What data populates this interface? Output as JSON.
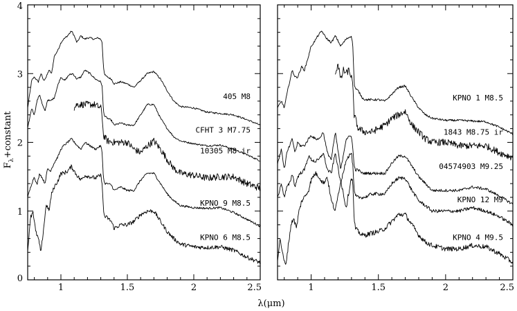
{
  "figure": {
    "ylabel_main": "F",
    "ylabel_sub": "λ",
    "ylabel_rest": "+constant",
    "xlabel": "λ(μm)"
  },
  "chart_data": [
    {
      "type": "line",
      "panel": "left",
      "xlim": [
        0.75,
        2.5
      ],
      "ylim": [
        0,
        4
      ],
      "xticks": [
        1,
        1.5,
        2,
        2.5
      ],
      "xtick_labels": [
        "1",
        "1.5",
        "2",
        "2.5"
      ],
      "yticks": [
        0,
        1,
        2,
        3,
        4
      ],
      "ytick_labels": [
        "0",
        "1",
        "2",
        "3",
        "4"
      ],
      "grid": false,
      "series": [
        {
          "label": "405 M8",
          "label_y": 2.67,
          "noise": 0.012,
          "x": [
            0.75,
            0.78,
            0.8,
            0.83,
            0.85,
            0.87,
            0.89,
            0.91,
            0.93,
            0.95,
            0.98,
            1.0,
            1.02,
            1.05,
            1.08,
            1.1,
            1.12,
            1.15,
            1.18,
            1.2,
            1.22,
            1.25,
            1.28,
            1.3,
            1.31,
            1.32,
            1.33,
            1.35,
            1.38,
            1.4,
            1.45,
            1.5,
            1.55,
            1.6,
            1.65,
            1.7,
            1.75,
            1.8,
            1.85,
            1.9,
            2.0,
            2.1,
            2.2,
            2.3,
            2.4,
            2.5
          ],
          "y": [
            2.5,
            2.9,
            2.95,
            2.88,
            3.0,
            2.9,
            2.95,
            3.05,
            3.0,
            3.25,
            3.35,
            3.45,
            3.5,
            3.55,
            3.62,
            3.55,
            3.45,
            3.55,
            3.5,
            3.52,
            3.52,
            3.5,
            3.52,
            3.5,
            3.45,
            3.1,
            2.98,
            2.95,
            2.92,
            2.85,
            2.88,
            2.85,
            2.8,
            2.9,
            3.0,
            3.03,
            2.92,
            2.75,
            2.6,
            2.52,
            2.5,
            2.44,
            2.42,
            2.4,
            2.33,
            2.25
          ]
        },
        {
          "label": "CFHT 3 M7.75",
          "label_y": 2.18,
          "noise": 0.012,
          "x": [
            0.75,
            0.78,
            0.8,
            0.82,
            0.84,
            0.86,
            0.88,
            0.9,
            0.92,
            0.95,
            0.98,
            1.0,
            1.03,
            1.06,
            1.09,
            1.12,
            1.15,
            1.18,
            1.22,
            1.26,
            1.3,
            1.31,
            1.32,
            1.33,
            1.35,
            1.38,
            1.4,
            1.45,
            1.5,
            1.55,
            1.6,
            1.65,
            1.7,
            1.75,
            1.8,
            1.85,
            1.9,
            2.0,
            2.1,
            2.2,
            2.3,
            2.4,
            2.5
          ],
          "y": [
            2.2,
            2.5,
            2.4,
            2.6,
            2.7,
            2.55,
            2.45,
            2.62,
            2.6,
            2.65,
            2.85,
            2.95,
            2.9,
            2.98,
            3.0,
            2.92,
            2.95,
            3.05,
            3.0,
            2.92,
            2.88,
            2.82,
            2.45,
            2.38,
            2.35,
            2.32,
            2.25,
            2.28,
            2.25,
            2.25,
            2.4,
            2.55,
            2.55,
            2.35,
            2.2,
            2.08,
            2.02,
            1.98,
            1.95,
            1.96,
            1.9,
            1.82,
            1.73
          ]
        },
        {
          "label": "10305 M8 ir",
          "label_y": 1.88,
          "noise": 0.05,
          "x": [
            1.1,
            1.12,
            1.15,
            1.2,
            1.25,
            1.3,
            1.31,
            1.32,
            1.35,
            1.4,
            1.45,
            1.5,
            1.55,
            1.6,
            1.65,
            1.7,
            1.75,
            1.8,
            1.85,
            1.9,
            2.0,
            2.1,
            2.2,
            2.3,
            2.4,
            2.5
          ],
          "y": [
            2.5,
            2.55,
            2.55,
            2.55,
            2.55,
            2.5,
            2.4,
            2.1,
            2.02,
            2.0,
            2.0,
            2.0,
            1.9,
            1.85,
            1.95,
            2.02,
            1.9,
            1.75,
            1.62,
            1.55,
            1.52,
            1.48,
            1.5,
            1.5,
            1.4,
            1.33
          ]
        },
        {
          "label": "KPNO 9 M8.5",
          "label_y": 1.12,
          "noise": 0.015,
          "x": [
            0.75,
            0.78,
            0.8,
            0.82,
            0.84,
            0.86,
            0.88,
            0.9,
            0.92,
            0.95,
            0.98,
            1.0,
            1.02,
            1.05,
            1.08,
            1.11,
            1.15,
            1.18,
            1.22,
            1.26,
            1.3,
            1.31,
            1.32,
            1.33,
            1.35,
            1.38,
            1.4,
            1.45,
            1.5,
            1.55,
            1.6,
            1.65,
            1.7,
            1.75,
            1.8,
            1.85,
            1.9,
            2.0,
            2.1,
            2.2,
            2.3,
            2.4,
            2.5
          ],
          "y": [
            1.2,
            1.4,
            1.5,
            1.38,
            1.55,
            1.48,
            1.4,
            1.62,
            1.58,
            1.7,
            1.8,
            1.9,
            1.95,
            2.0,
            2.05,
            1.98,
            1.9,
            2.0,
            1.95,
            1.9,
            1.95,
            1.85,
            1.48,
            1.4,
            1.4,
            1.38,
            1.3,
            1.35,
            1.3,
            1.3,
            1.45,
            1.55,
            1.55,
            1.4,
            1.25,
            1.15,
            1.08,
            1.05,
            1.04,
            1.05,
            0.98,
            0.88,
            0.78
          ]
        },
        {
          "label": "KPNO 6 M8.5",
          "label_y": 0.62,
          "noise": 0.03,
          "x": [
            0.75,
            0.77,
            0.79,
            0.81,
            0.83,
            0.85,
            0.87,
            0.89,
            0.91,
            0.93,
            0.95,
            0.98,
            1.0,
            1.02,
            1.05,
            1.08,
            1.11,
            1.15,
            1.18,
            1.22,
            1.26,
            1.3,
            1.31,
            1.32,
            1.33,
            1.35,
            1.38,
            1.4,
            1.45,
            1.5,
            1.55,
            1.6,
            1.65,
            1.7,
            1.75,
            1.8,
            1.85,
            1.9,
            2.0,
            2.1,
            2.2,
            2.3,
            2.4,
            2.5
          ],
          "y": [
            0.4,
            0.9,
            1.0,
            0.7,
            0.6,
            0.4,
            0.75,
            1.1,
            1.0,
            1.25,
            1.35,
            1.45,
            1.55,
            1.55,
            1.58,
            1.65,
            1.55,
            1.45,
            1.52,
            1.5,
            1.48,
            1.52,
            1.42,
            1.0,
            0.92,
            0.9,
            0.85,
            0.75,
            0.8,
            0.8,
            0.85,
            0.95,
            1.0,
            1.0,
            0.85,
            0.7,
            0.6,
            0.52,
            0.48,
            0.47,
            0.48,
            0.43,
            0.33,
            0.25
          ]
        }
      ]
    },
    {
      "type": "line",
      "panel": "right",
      "xlim": [
        0.75,
        2.5
      ],
      "ylim": [
        0,
        4
      ],
      "xticks": [
        1,
        1.5,
        2,
        2.5
      ],
      "xtick_labels": [
        "1",
        "1.5",
        "2",
        "2.5"
      ],
      "grid": false,
      "series": [
        {
          "label": "KPNO 1 M8.5",
          "label_y": 2.65,
          "noise": 0.015,
          "x": [
            0.75,
            0.78,
            0.8,
            0.83,
            0.86,
            0.88,
            0.9,
            0.93,
            0.95,
            0.98,
            1.0,
            1.02,
            1.05,
            1.08,
            1.1,
            1.12,
            1.15,
            1.18,
            1.22,
            1.26,
            1.3,
            1.31,
            1.32,
            1.33,
            1.35,
            1.38,
            1.4,
            1.45,
            1.5,
            1.55,
            1.6,
            1.65,
            1.7,
            1.75,
            1.8,
            1.85,
            1.9,
            2.0,
            2.1,
            2.2,
            2.3,
            2.4,
            2.5
          ],
          "y": [
            2.5,
            2.6,
            2.5,
            2.8,
            3.05,
            2.95,
            2.95,
            3.1,
            3.05,
            3.25,
            3.4,
            3.45,
            3.55,
            3.62,
            3.55,
            3.5,
            3.45,
            3.55,
            3.4,
            3.5,
            3.55,
            3.4,
            2.85,
            2.78,
            2.75,
            2.65,
            2.62,
            2.62,
            2.62,
            2.6,
            2.7,
            2.8,
            2.82,
            2.65,
            2.5,
            2.4,
            2.35,
            2.32,
            2.32,
            2.31,
            2.3,
            2.22,
            2.12
          ]
        },
        {
          "label": "1843 M8.75 ir",
          "label_y": 2.15,
          "noise": 0.05,
          "x": [
            1.18,
            1.2,
            1.22,
            1.24,
            1.26,
            1.28,
            1.3,
            1.31,
            1.32,
            1.35,
            1.4,
            1.45,
            1.5,
            1.55,
            1.6,
            1.65,
            1.7,
            1.75,
            1.8,
            1.85,
            1.9,
            2.0,
            2.1,
            2.2,
            2.3,
            2.4,
            2.5
          ],
          "y": [
            3.0,
            3.15,
            2.9,
            3.05,
            3.0,
            3.05,
            2.95,
            2.8,
            2.4,
            2.2,
            2.15,
            2.15,
            2.2,
            2.25,
            2.35,
            2.4,
            2.45,
            2.25,
            2.15,
            2.05,
            2.0,
            2.0,
            1.95,
            1.95,
            1.95,
            1.85,
            1.78
          ]
        },
        {
          "label": "04574903 M9.25",
          "label_y": 1.65,
          "noise": 0.02,
          "x": [
            0.75,
            0.78,
            0.8,
            0.82,
            0.84,
            0.86,
            0.88,
            0.9,
            0.92,
            0.95,
            0.98,
            1.0,
            1.03,
            1.06,
            1.09,
            1.12,
            1.15,
            1.18,
            1.22,
            1.26,
            1.3,
            1.31,
            1.32,
            1.33,
            1.35,
            1.38,
            1.4,
            1.45,
            1.5,
            1.55,
            1.6,
            1.65,
            1.7,
            1.75,
            1.8,
            1.85,
            1.9,
            2.0,
            2.1,
            2.2,
            2.3,
            2.4,
            2.5
          ],
          "y": [
            1.7,
            1.9,
            1.6,
            1.85,
            1.95,
            2.05,
            1.85,
            2.0,
            1.95,
            1.95,
            2.05,
            2.1,
            2.05,
            2.05,
            2.15,
            1.85,
            1.75,
            2.15,
            1.6,
            2.05,
            2.1,
            1.9,
            1.65,
            1.6,
            1.6,
            1.55,
            1.55,
            1.55,
            1.55,
            1.55,
            1.7,
            1.8,
            1.8,
            1.65,
            1.5,
            1.4,
            1.3,
            1.3,
            1.3,
            1.35,
            1.32,
            1.22,
            1.1
          ]
        },
        {
          "label": "KPNO 12 M9",
          "label_y": 1.17,
          "noise": 0.025,
          "x": [
            0.75,
            0.78,
            0.8,
            0.82,
            0.84,
            0.86,
            0.88,
            0.9,
            0.92,
            0.95,
            0.98,
            1.0,
            1.03,
            1.06,
            1.09,
            1.12,
            1.15,
            1.18,
            1.22,
            1.26,
            1.3,
            1.31,
            1.32,
            1.33,
            1.35,
            1.38,
            1.4,
            1.45,
            1.5,
            1.55,
            1.6,
            1.65,
            1.7,
            1.75,
            1.8,
            1.85,
            1.9,
            2.0,
            2.1,
            2.2,
            2.3,
            2.4,
            2.5
          ],
          "y": [
            1.2,
            1.4,
            1.2,
            1.35,
            1.4,
            1.55,
            1.35,
            1.5,
            1.55,
            1.6,
            1.8,
            1.75,
            1.72,
            1.75,
            1.85,
            1.6,
            1.55,
            1.85,
            1.4,
            1.75,
            1.85,
            1.65,
            1.28,
            1.22,
            1.2,
            1.2,
            1.2,
            1.25,
            1.25,
            1.25,
            1.4,
            1.48,
            1.48,
            1.3,
            1.15,
            1.08,
            1.0,
            1.0,
            1.0,
            1.05,
            1.0,
            0.92,
            0.8
          ]
        },
        {
          "label": "KPNO 4 M9.5",
          "label_y": 0.62,
          "noise": 0.035,
          "x": [
            0.75,
            0.77,
            0.79,
            0.81,
            0.83,
            0.85,
            0.87,
            0.89,
            0.91,
            0.93,
            0.95,
            0.98,
            1.0,
            1.03,
            1.06,
            1.09,
            1.12,
            1.15,
            1.18,
            1.22,
            1.26,
            1.3,
            1.31,
            1.32,
            1.33,
            1.35,
            1.38,
            1.4,
            1.45,
            1.5,
            1.55,
            1.6,
            1.65,
            1.7,
            1.75,
            1.8,
            1.85,
            1.9,
            2.0,
            2.1,
            2.2,
            2.3,
            2.4,
            2.5
          ],
          "y": [
            0.3,
            0.6,
            0.35,
            0.2,
            0.5,
            0.8,
            0.9,
            0.75,
            1.0,
            1.15,
            1.2,
            1.3,
            1.45,
            1.55,
            1.5,
            1.4,
            1.5,
            1.15,
            1.0,
            1.45,
            1.05,
            1.5,
            1.4,
            0.85,
            0.75,
            0.7,
            0.65,
            0.65,
            0.68,
            0.7,
            0.75,
            0.85,
            0.95,
            0.95,
            0.8,
            0.65,
            0.55,
            0.5,
            0.45,
            0.45,
            0.5,
            0.48,
            0.38,
            0.25
          ]
        }
      ]
    }
  ]
}
